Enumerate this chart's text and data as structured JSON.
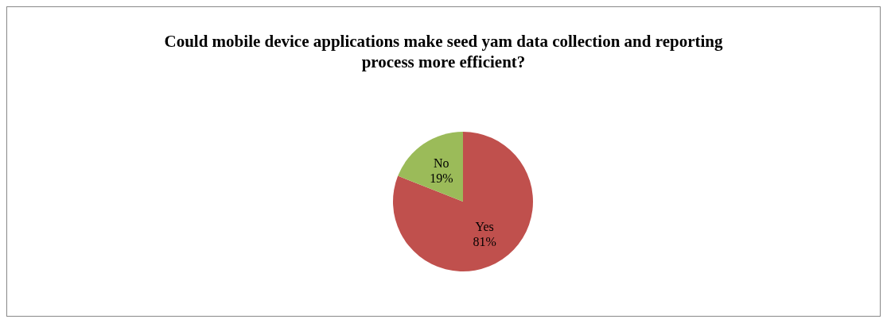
{
  "chart_data": {
    "type": "pie",
    "title": "Could mobile device applications make seed yam data collection and reporting process more efficient?",
    "categories": [
      "Yes",
      "No"
    ],
    "values": [
      81,
      19
    ],
    "value_labels": [
      "81%",
      "19%"
    ],
    "colors": [
      "#c0504d",
      "#9bbb59"
    ],
    "legend": false
  }
}
